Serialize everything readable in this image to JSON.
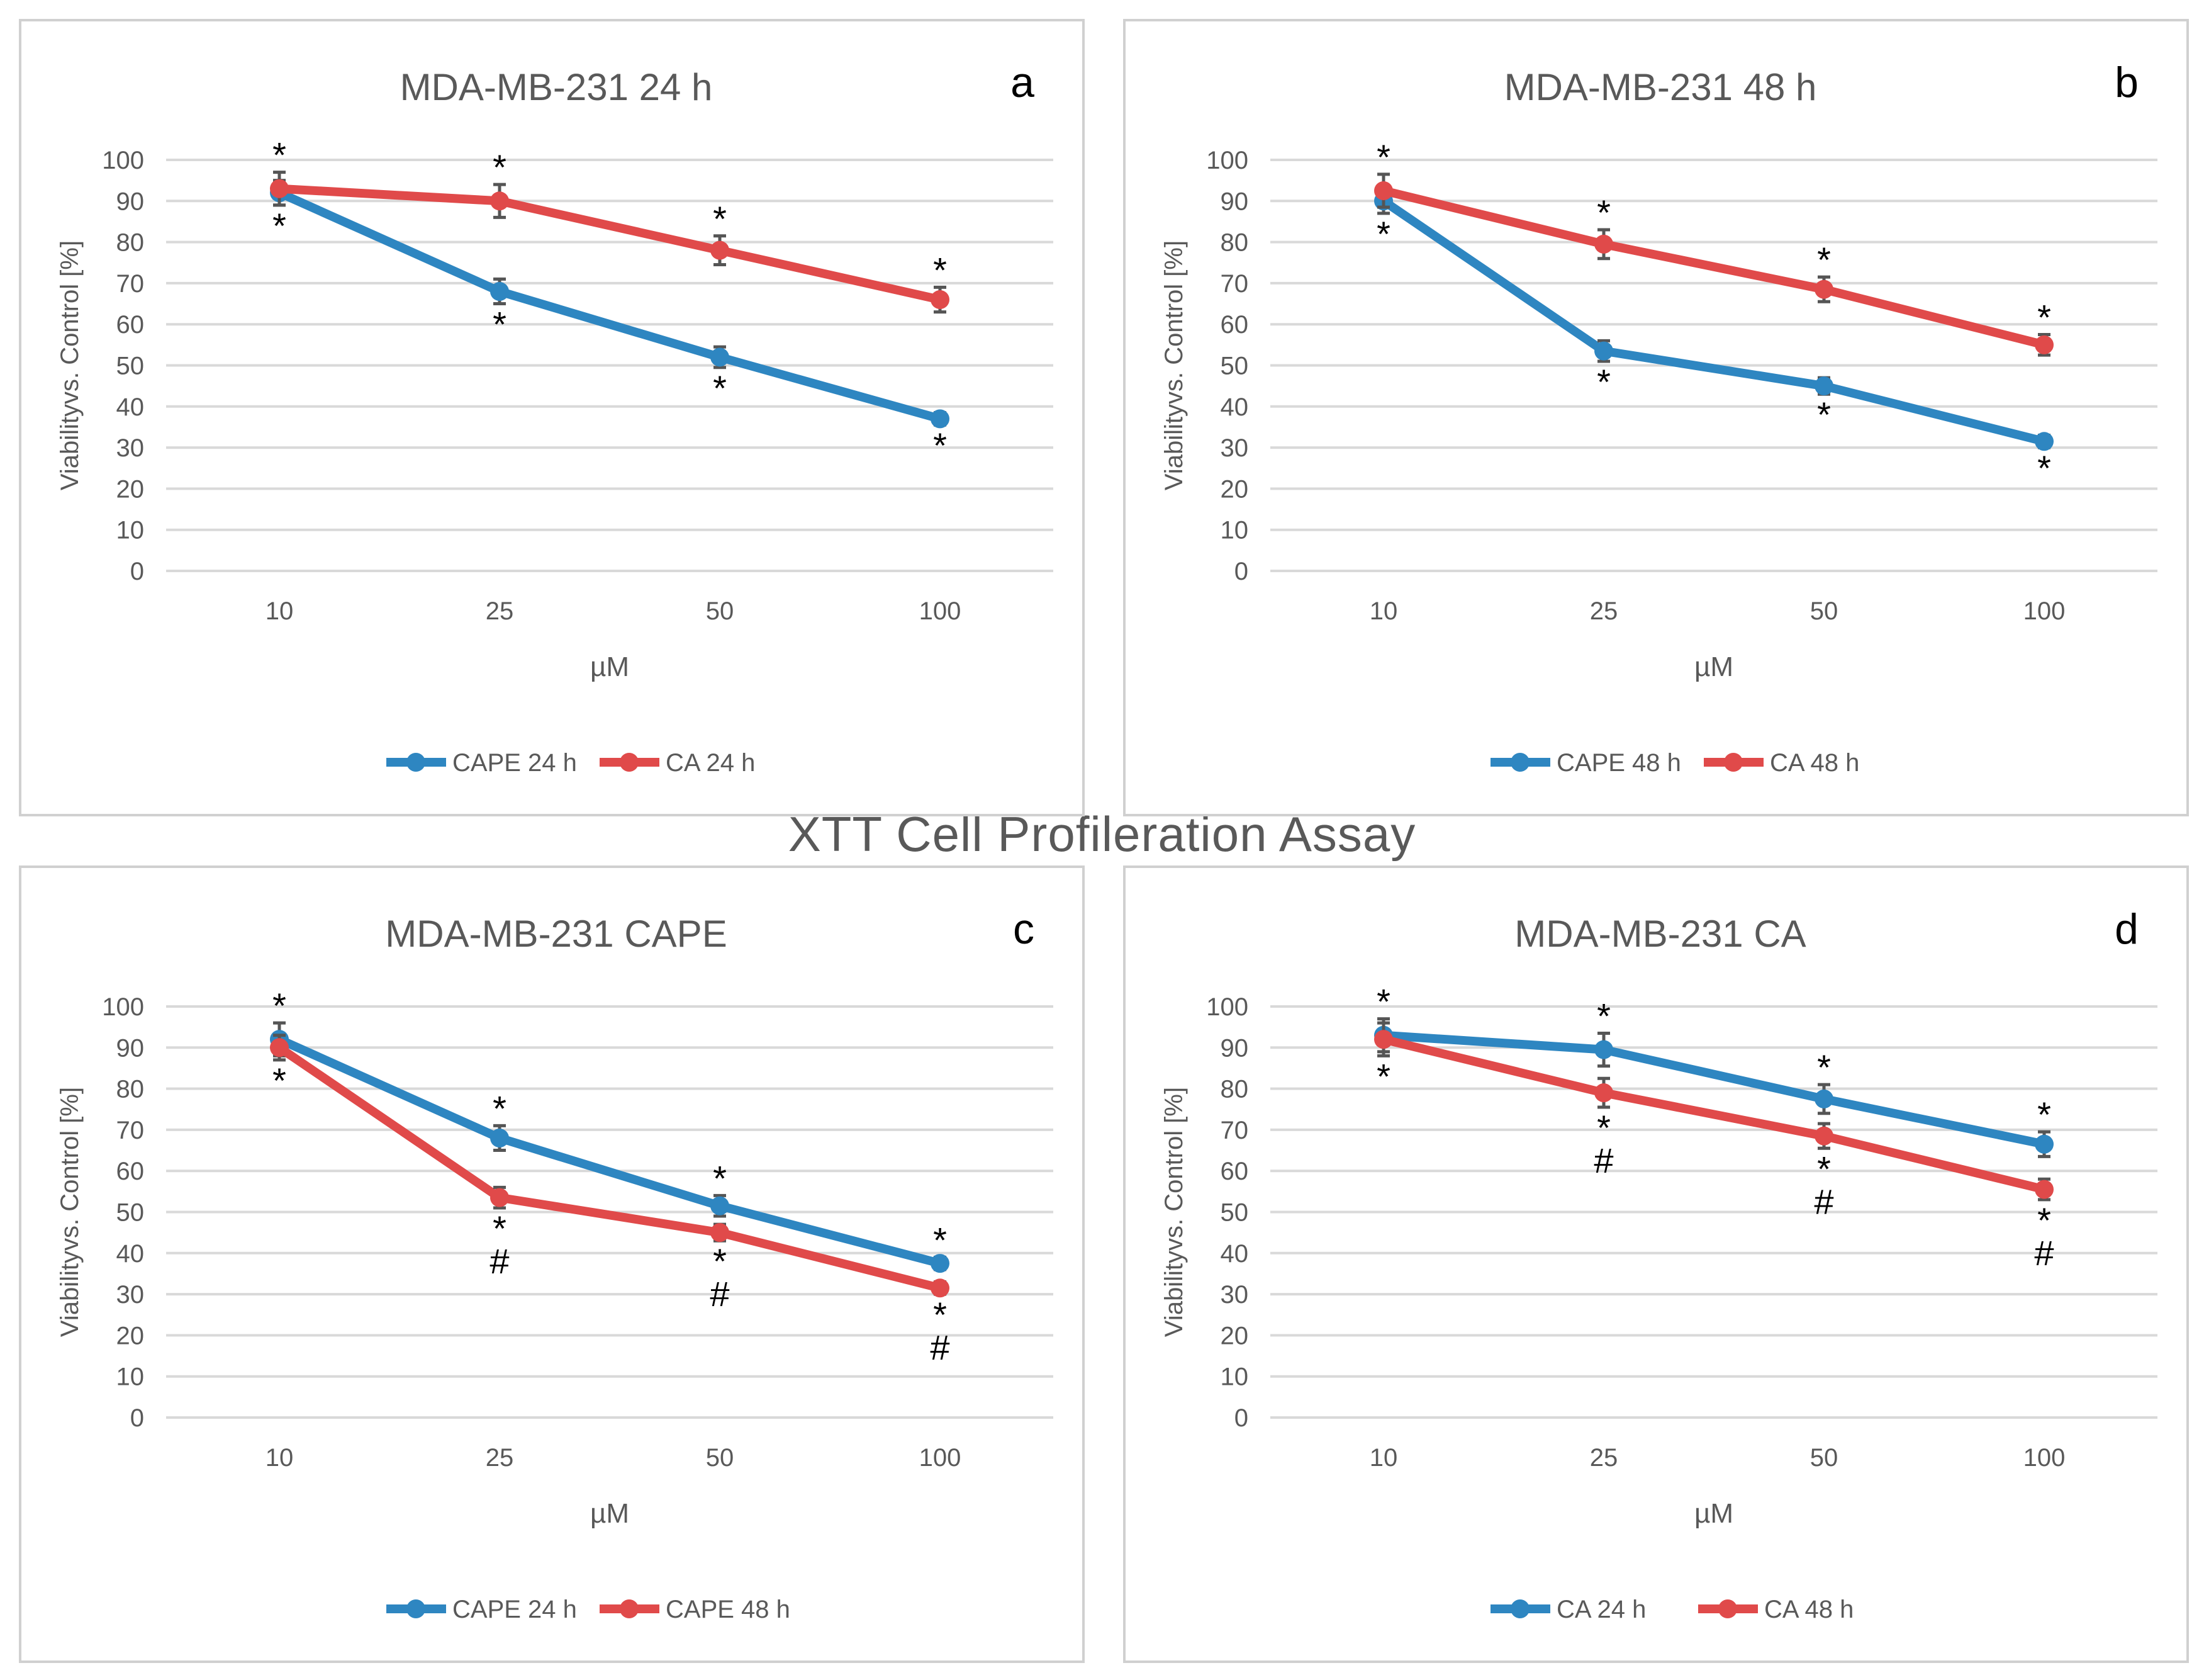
{
  "figure": {
    "main_title": "XTT Cell Profileration Assay",
    "colors": {
      "blue": "#2e86c1",
      "red": "#e04a4a",
      "grid": "#d9d9d9",
      "axis_text": "#595959"
    }
  },
  "chart_data": [
    {
      "type": "line",
      "panel_letter": "a",
      "title": "MDA-MB-231 24 h",
      "xlabel": "µM",
      "ylabel": "Viabilityvs. Control [%]",
      "categories": [
        "10",
        "25",
        "50",
        "100"
      ],
      "yticks": [
        "0",
        "10",
        "20",
        "30",
        "40",
        "50",
        "60",
        "70",
        "80",
        "90",
        "100"
      ],
      "ylim": [
        0,
        100
      ],
      "series": [
        {
          "name": "CAPE 24 h",
          "color": "#2e86c1",
          "values": [
            92,
            68,
            52,
            37
          ],
          "errors": [
            3,
            3,
            2.5,
            1.5
          ],
          "annotations": [
            "*",
            "*",
            "*",
            "*"
          ],
          "annotation_side": "below"
        },
        {
          "name": "CA 24 h",
          "color": "#e04a4a",
          "values": [
            93,
            90,
            78,
            66
          ],
          "errors": [
            4,
            4,
            3.5,
            3
          ],
          "annotations": [
            "*",
            "*",
            "*",
            "*"
          ],
          "annotation_side": "above"
        }
      ]
    },
    {
      "type": "line",
      "panel_letter": "b",
      "title": "MDA-MB-231 48 h",
      "xlabel": "µM",
      "ylabel": "Viabilityvs. Control [%]",
      "categories": [
        "10",
        "25",
        "50",
        "100"
      ],
      "yticks": [
        "0",
        "10",
        "20",
        "30",
        "40",
        "50",
        "60",
        "70",
        "80",
        "90",
        "100"
      ],
      "ylim": [
        0,
        100
      ],
      "series": [
        {
          "name": "CAPE 48 h",
          "color": "#2e86c1",
          "values": [
            90,
            53.5,
            45,
            31.5
          ],
          "errors": [
            3,
            2.5,
            2,
            1.5
          ],
          "annotations": [
            "*",
            "*",
            "*",
            "*"
          ],
          "annotation_side": "below"
        },
        {
          "name": "CA 48 h",
          "color": "#e04a4a",
          "values": [
            92.5,
            79.5,
            68.5,
            55
          ],
          "errors": [
            4,
            3.5,
            3,
            2.5
          ],
          "annotations": [
            "*",
            "*",
            "*",
            "*"
          ],
          "annotation_side": "above"
        }
      ]
    },
    {
      "type": "line",
      "panel_letter": "c",
      "title": "MDA-MB-231 CAPE",
      "xlabel": "µM",
      "ylabel": "Viabilityvs. Control [%]",
      "categories": [
        "10",
        "25",
        "50",
        "100"
      ],
      "yticks": [
        "0",
        "10",
        "20",
        "30",
        "40",
        "50",
        "60",
        "70",
        "80",
        "90",
        "100"
      ],
      "ylim": [
        0,
        100
      ],
      "series": [
        {
          "name": "CAPE 24 h",
          "color": "#2e86c1",
          "values": [
            92,
            68,
            51.5,
            37.5
          ],
          "errors": [
            4,
            3,
            2.5,
            1.5
          ],
          "annotations": [
            "*",
            "*",
            "*",
            "*"
          ],
          "annotation_side": "above"
        },
        {
          "name": "CAPE 48 h",
          "color": "#e04a4a",
          "values": [
            90,
            53.5,
            45,
            31.5
          ],
          "errors": [
            3,
            2.5,
            2,
            1.5
          ],
          "annotations": [
            "*",
            "*#",
            "*#",
            "*#"
          ],
          "annotation_side": "below"
        }
      ]
    },
    {
      "type": "line",
      "panel_letter": "d",
      "title": "MDA-MB-231 CA",
      "xlabel": "µM",
      "ylabel": "Viabilityvs. Control [%]",
      "categories": [
        "10",
        "25",
        "50",
        "100"
      ],
      "yticks": [
        "0",
        "10",
        "20",
        "30",
        "40",
        "50",
        "60",
        "70",
        "80",
        "90",
        "100"
      ],
      "ylim": [
        0,
        100
      ],
      "series": [
        {
          "name": "CA 24 h",
          "color": "#2e86c1",
          "values": [
            93,
            89.5,
            77.5,
            66.5
          ],
          "errors": [
            4,
            4,
            3.5,
            3
          ],
          "annotations": [
            "*",
            "*",
            "*",
            "*"
          ],
          "annotation_side": "above"
        },
        {
          "name": "CA 48 h",
          "color": "#e04a4a",
          "values": [
            92,
            79,
            68.5,
            55.5
          ],
          "errors": [
            4,
            3.5,
            3,
            2.5
          ],
          "annotations": [
            "*",
            "*#",
            "*#",
            "*#"
          ],
          "annotation_side": "below"
        }
      ]
    }
  ]
}
